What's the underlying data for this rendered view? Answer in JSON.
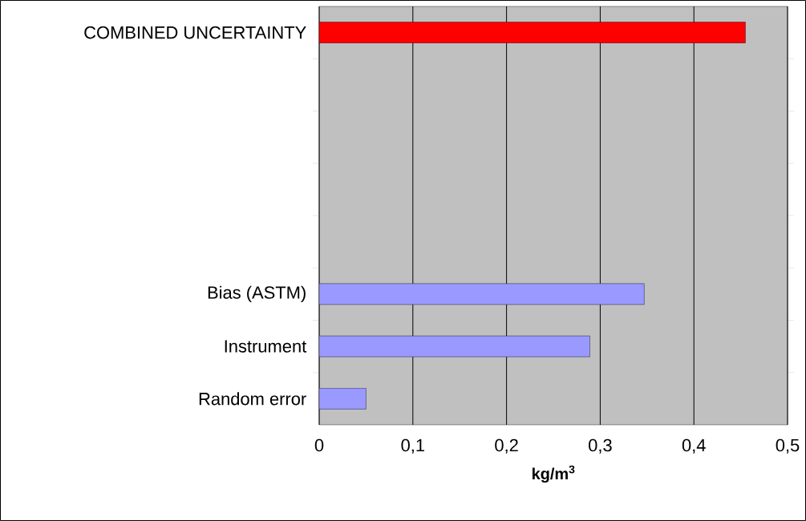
{
  "chart_data": {
    "type": "bar",
    "orientation": "horizontal",
    "categories": [
      "COMBINED UNCERTAINTY",
      null,
      null,
      null,
      null,
      "Bias (ASTM)",
      "Instrument",
      "Random error"
    ],
    "values": [
      0.455,
      null,
      null,
      null,
      null,
      0.347,
      0.289,
      0.05
    ],
    "colors": [
      "#ff0000",
      "#9999ff",
      "#9999ff",
      "#9999ff",
      "#9999ff",
      "#9999ff",
      "#9999ff",
      "#9999ff"
    ],
    "xlabel": "kg/m$^{3}$",
    "xlim": [
      0,
      0.5
    ],
    "xticks": [
      0,
      {
        "value": 0.1,
        "label": "0,1"
      },
      {
        "value": 0.2,
        "label": "0,2"
      },
      {
        "value": 0.3,
        "label": "0,3"
      },
      {
        "value": 0.4,
        "label": "0,4"
      },
      {
        "value": 0.5,
        "label": "0,5"
      }
    ],
    "grid": "x"
  }
}
